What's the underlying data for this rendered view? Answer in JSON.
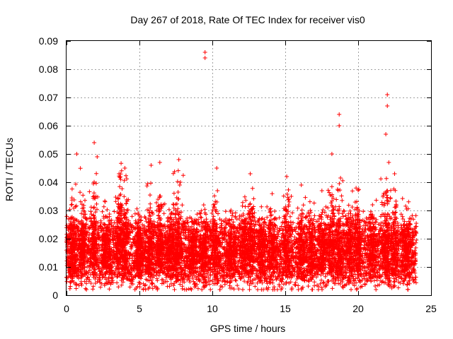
{
  "chart_data": {
    "type": "scatter",
    "title": "Day 267 of 2018, Rate Of TEC Index for receiver vis0",
    "xlabel": "GPS time / hours",
    "ylabel": "ROTI / TECUs",
    "xlim": [
      0,
      25
    ],
    "ylim": [
      0,
      0.09
    ],
    "xticks": [
      "0",
      "5",
      "10",
      "15",
      "20",
      "25"
    ],
    "xtick_values": [
      0,
      5,
      10,
      15,
      20,
      25
    ],
    "yticks": [
      "0",
      "0.01",
      "0.02",
      "0.03",
      "0.04",
      "0.05",
      "0.06",
      "0.07",
      "0.08",
      "0.09"
    ],
    "ytick_values": [
      0,
      0.01,
      0.02,
      0.03,
      0.04,
      0.05,
      0.06,
      0.07,
      0.08,
      0.09
    ],
    "grid": true,
    "marker": "+",
    "color": "#ff0000",
    "series_summary": {
      "name": "ROTI vis0",
      "x_range": [
        0,
        24
      ],
      "typical_band": [
        0.005,
        0.025
      ]
    },
    "peaks": [
      {
        "x": 0.7,
        "y": 0.05
      },
      {
        "x": 1.9,
        "y": 0.054
      },
      {
        "x": 2.1,
        "y": 0.049
      },
      {
        "x": 3.6,
        "y": 0.043
      },
      {
        "x": 4.0,
        "y": 0.045
      },
      {
        "x": 5.8,
        "y": 0.046
      },
      {
        "x": 6.4,
        "y": 0.047
      },
      {
        "x": 7.7,
        "y": 0.048
      },
      {
        "x": 9.5,
        "y": 0.086
      },
      {
        "x": 9.5,
        "y": 0.084
      },
      {
        "x": 10.3,
        "y": 0.045
      },
      {
        "x": 12.6,
        "y": 0.043
      },
      {
        "x": 15.1,
        "y": 0.042
      },
      {
        "x": 16.1,
        "y": 0.039
      },
      {
        "x": 18.2,
        "y": 0.05
      },
      {
        "x": 18.7,
        "y": 0.064
      },
      {
        "x": 18.7,
        "y": 0.06
      },
      {
        "x": 22.0,
        "y": 0.071
      },
      {
        "x": 22.0,
        "y": 0.067
      },
      {
        "x": 21.9,
        "y": 0.057
      },
      {
        "x": 22.1,
        "y": 0.047
      },
      {
        "x": 22.5,
        "y": 0.043
      }
    ],
    "bursts": [
      {
        "x": 0.4,
        "amp": 0.03
      },
      {
        "x": 1.1,
        "amp": 0.028
      },
      {
        "x": 1.9,
        "amp": 0.035
      },
      {
        "x": 2.7,
        "amp": 0.022
      },
      {
        "x": 3.6,
        "amp": 0.03
      },
      {
        "x": 4.0,
        "amp": 0.032
      },
      {
        "x": 5.0,
        "amp": 0.018
      },
      {
        "x": 5.7,
        "amp": 0.026
      },
      {
        "x": 6.4,
        "amp": 0.028
      },
      {
        "x": 7.1,
        "amp": 0.02
      },
      {
        "x": 7.6,
        "amp": 0.034
      },
      {
        "x": 8.7,
        "amp": 0.018
      },
      {
        "x": 9.4,
        "amp": 0.02
      },
      {
        "x": 10.2,
        "amp": 0.024
      },
      {
        "x": 11.3,
        "amp": 0.018
      },
      {
        "x": 12.2,
        "amp": 0.02
      },
      {
        "x": 12.7,
        "amp": 0.026
      },
      {
        "x": 13.4,
        "amp": 0.018
      },
      {
        "x": 14.1,
        "amp": 0.02
      },
      {
        "x": 15.1,
        "amp": 0.028
      },
      {
        "x": 16.1,
        "amp": 0.022
      },
      {
        "x": 16.8,
        "amp": 0.018
      },
      {
        "x": 17.6,
        "amp": 0.02
      },
      {
        "x": 18.2,
        "amp": 0.03
      },
      {
        "x": 18.7,
        "amp": 0.032
      },
      {
        "x": 19.4,
        "amp": 0.022
      },
      {
        "x": 20.0,
        "amp": 0.026
      },
      {
        "x": 21.0,
        "amp": 0.02
      },
      {
        "x": 21.9,
        "amp": 0.034
      },
      {
        "x": 22.5,
        "amp": 0.026
      },
      {
        "x": 23.3,
        "amp": 0.02
      }
    ]
  }
}
